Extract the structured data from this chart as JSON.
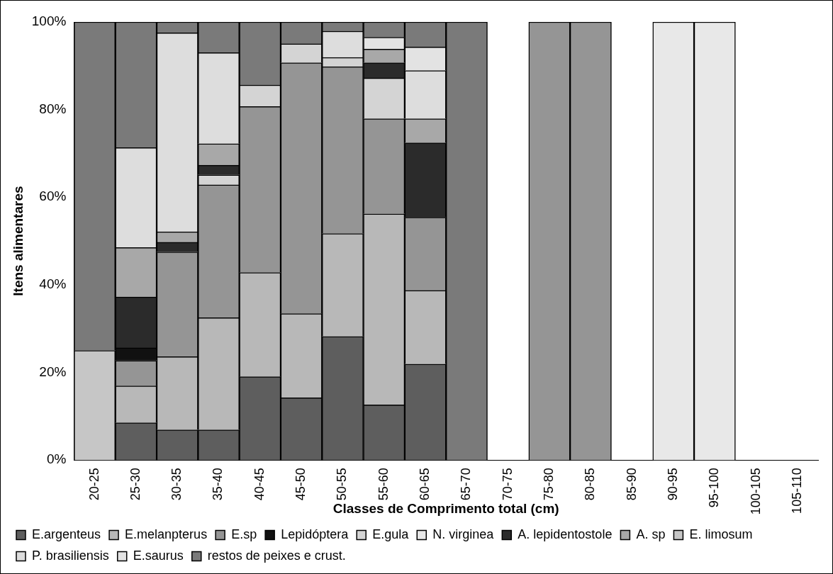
{
  "chart_data": {
    "type": "bar",
    "stacked": true,
    "xlabel": "Classes de Comprimento total (cm)",
    "ylabel": "Itens alimentares",
    "categories": [
      "20-25",
      "25-30",
      "30-35",
      "35-40",
      "40-45",
      "45-50",
      "50-55",
      "55-60",
      "60-65",
      "65-70",
      "70-75",
      "75-80",
      "80-85",
      "85-90",
      "90-95",
      "95-100",
      "100-105",
      "105-110"
    ],
    "ylim": [
      0,
      100
    ],
    "yticks": [
      {
        "value": 0,
        "label": "0%"
      },
      {
        "value": 20,
        "label": "20%"
      },
      {
        "value": 40,
        "label": "40%"
      },
      {
        "value": 60,
        "label": "60%"
      },
      {
        "value": 80,
        "label": "80%"
      },
      {
        "value": 100,
        "label": "100%"
      }
    ],
    "grid": false,
    "legend": "bottom",
    "series": [
      {
        "name": "E.argenteus",
        "color": "#5e5e5e",
        "values": [
          null,
          8.5,
          6.9,
          6.9,
          19.0,
          14.2,
          28.2,
          12.6,
          21.9,
          null,
          null,
          null,
          null,
          null,
          null,
          null,
          null,
          null
        ]
      },
      {
        "name": "E.melanpterus",
        "color": "#b8b8b8",
        "values": [
          null,
          8.4,
          16.7,
          25.6,
          23.8,
          19.2,
          23.5,
          43.6,
          16.8,
          null,
          null,
          null,
          null,
          null,
          null,
          null,
          null,
          null
        ]
      },
      {
        "name": "E.sp",
        "color": "#959595",
        "values": [
          null,
          5.8,
          23.9,
          30.3,
          37.9,
          57.3,
          38.1,
          21.7,
          16.7,
          null,
          null,
          100,
          100,
          null,
          null,
          null,
          null,
          null
        ]
      },
      {
        "name": "Lepidóptera",
        "color": "#111111",
        "values": [
          null,
          2.9,
          null,
          null,
          null,
          null,
          null,
          null,
          null,
          null,
          null,
          null,
          null,
          null,
          null,
          null,
          null,
          null
        ]
      },
      {
        "name": "E.gula",
        "color": "#d4d4d4",
        "values": [
          null,
          null,
          null,
          2.3,
          4.9,
          4.3,
          2.1,
          9.3,
          null,
          null,
          null,
          null,
          null,
          null,
          null,
          null,
          null,
          null
        ]
      },
      {
        "name": "N. virginea",
        "color": "#e8e8e8",
        "values": [
          null,
          null,
          null,
          null,
          null,
          null,
          null,
          null,
          null,
          null,
          null,
          null,
          null,
          null,
          100,
          100,
          null,
          null
        ]
      },
      {
        "name": "A. lepidentostole",
        "color": "#2b2b2b",
        "values": [
          null,
          11.6,
          2.2,
          2.2,
          null,
          null,
          null,
          3.5,
          17.0,
          null,
          null,
          null,
          null,
          null,
          null,
          null,
          null,
          null
        ]
      },
      {
        "name": "A. sp",
        "color": "#a8a8a8",
        "values": [
          null,
          11.3,
          2.4,
          4.9,
          null,
          null,
          null,
          3.1,
          5.5,
          null,
          null,
          null,
          null,
          null,
          null,
          null,
          null,
          null
        ]
      },
      {
        "name": "E. limosum",
        "color": "#c6c6c6",
        "values": [
          25,
          null,
          null,
          null,
          null,
          null,
          null,
          null,
          null,
          null,
          null,
          null,
          null,
          null,
          null,
          null,
          null,
          null
        ]
      },
      {
        "name": "P. brasiliensis",
        "color": "#dddddd",
        "values": [
          null,
          22.8,
          45.4,
          20.8,
          null,
          null,
          6.0,
          null,
          11.0,
          null,
          null,
          null,
          null,
          null,
          null,
          null,
          null,
          null
        ]
      },
      {
        "name": "E.saurus",
        "color": "#e3e3e3",
        "values": [
          null,
          null,
          null,
          null,
          null,
          null,
          null,
          2.7,
          5.4,
          null,
          null,
          null,
          null,
          null,
          null,
          null,
          null,
          null
        ]
      },
      {
        "name": "restos de peixes e crust.",
        "color": "#7a7a7a",
        "values": [
          75,
          28.7,
          2.5,
          7.0,
          14.4,
          5.0,
          2.1,
          3.5,
          5.7,
          100,
          null,
          null,
          null,
          null,
          null,
          null,
          null,
          null
        ]
      }
    ]
  }
}
